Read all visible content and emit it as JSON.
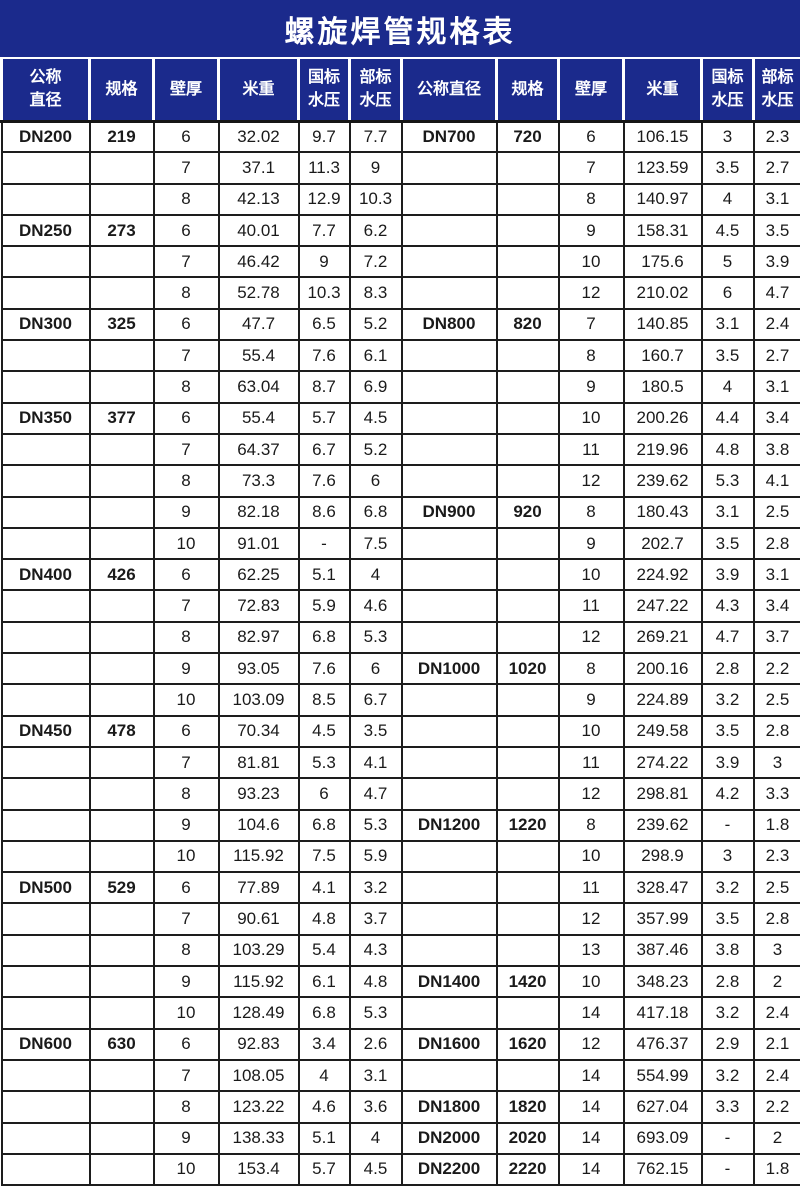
{
  "title": "螺旋焊管规格表",
  "colors": {
    "header_bg": "#1b2a8c",
    "header_text": "#ffffff",
    "grid_line": "#1d1d1d",
    "body_text": "#1a1a1a",
    "body_bg": "#ffffff"
  },
  "table": {
    "headers": [
      "公称\n直径",
      "规格",
      "壁厚",
      "米重",
      "国标\n水压",
      "部标\n水压",
      "公称直径",
      "规格",
      "壁厚",
      "米重",
      "国标\n水压",
      "部标\n水压"
    ],
    "rows": [
      [
        "DN200",
        "219",
        "6",
        "32.02",
        "9.7",
        "7.7",
        "DN700",
        "720",
        "6",
        "106.15",
        "3",
        "2.3"
      ],
      [
        "",
        "",
        "7",
        "37.1",
        "11.3",
        "9",
        "",
        "",
        "7",
        "123.59",
        "3.5",
        "2.7"
      ],
      [
        "",
        "",
        "8",
        "42.13",
        "12.9",
        "10.3",
        "",
        "",
        "8",
        "140.97",
        "4",
        "3.1"
      ],
      [
        "DN250",
        "273",
        "6",
        "40.01",
        "7.7",
        "6.2",
        "",
        "",
        "9",
        "158.31",
        "4.5",
        "3.5"
      ],
      [
        "",
        "",
        "7",
        "46.42",
        "9",
        "7.2",
        "",
        "",
        "10",
        "175.6",
        "5",
        "3.9"
      ],
      [
        "",
        "",
        "8",
        "52.78",
        "10.3",
        "8.3",
        "",
        "",
        "12",
        "210.02",
        "6",
        "4.7"
      ],
      [
        "DN300",
        "325",
        "6",
        "47.7",
        "6.5",
        "5.2",
        "DN800",
        "820",
        "7",
        "140.85",
        "3.1",
        "2.4"
      ],
      [
        "",
        "",
        "7",
        "55.4",
        "7.6",
        "6.1",
        "",
        "",
        "8",
        "160.7",
        "3.5",
        "2.7"
      ],
      [
        "",
        "",
        "8",
        "63.04",
        "8.7",
        "6.9",
        "",
        "",
        "9",
        "180.5",
        "4",
        "3.1"
      ],
      [
        "DN350",
        "377",
        "6",
        "55.4",
        "5.7",
        "4.5",
        "",
        "",
        "10",
        "200.26",
        "4.4",
        "3.4"
      ],
      [
        "",
        "",
        "7",
        "64.37",
        "6.7",
        "5.2",
        "",
        "",
        "11",
        "219.96",
        "4.8",
        "3.8"
      ],
      [
        "",
        "",
        "8",
        "73.3",
        "7.6",
        "6",
        "",
        "",
        "12",
        "239.62",
        "5.3",
        "4.1"
      ],
      [
        "",
        "",
        "9",
        "82.18",
        "8.6",
        "6.8",
        "DN900",
        "920",
        "8",
        "180.43",
        "3.1",
        "2.5"
      ],
      [
        "",
        "",
        "10",
        "91.01",
        "-",
        "7.5",
        "",
        "",
        "9",
        "202.7",
        "3.5",
        "2.8"
      ],
      [
        "DN400",
        "426",
        "6",
        "62.25",
        "5.1",
        "4",
        "",
        "",
        "10",
        "224.92",
        "3.9",
        "3.1"
      ],
      [
        "",
        "",
        "7",
        "72.83",
        "5.9",
        "4.6",
        "",
        "",
        "11",
        "247.22",
        "4.3",
        "3.4"
      ],
      [
        "",
        "",
        "8",
        "82.97",
        "6.8",
        "5.3",
        "",
        "",
        "12",
        "269.21",
        "4.7",
        "3.7"
      ],
      [
        "",
        "",
        "9",
        "93.05",
        "7.6",
        "6",
        "DN1000",
        "1020",
        "8",
        "200.16",
        "2.8",
        "2.2"
      ],
      [
        "",
        "",
        "10",
        "103.09",
        "8.5",
        "6.7",
        "",
        "",
        "9",
        "224.89",
        "3.2",
        "2.5"
      ],
      [
        "DN450",
        "478",
        "6",
        "70.34",
        "4.5",
        "3.5",
        "",
        "",
        "10",
        "249.58",
        "3.5",
        "2.8"
      ],
      [
        "",
        "",
        "7",
        "81.81",
        "5.3",
        "4.1",
        "",
        "",
        "11",
        "274.22",
        "3.9",
        "3"
      ],
      [
        "",
        "",
        "8",
        "93.23",
        "6",
        "4.7",
        "",
        "",
        "12",
        "298.81",
        "4.2",
        "3.3"
      ],
      [
        "",
        "",
        "9",
        "104.6",
        "6.8",
        "5.3",
        "DN1200",
        "1220",
        "8",
        "239.62",
        "-",
        "1.8"
      ],
      [
        "",
        "",
        "10",
        "115.92",
        "7.5",
        "5.9",
        "",
        "",
        "10",
        "298.9",
        "3",
        "2.3"
      ],
      [
        "DN500",
        "529",
        "6",
        "77.89",
        "4.1",
        "3.2",
        "",
        "",
        "11",
        "328.47",
        "3.2",
        "2.5"
      ],
      [
        "",
        "",
        "7",
        "90.61",
        "4.8",
        "3.7",
        "",
        "",
        "12",
        "357.99",
        "3.5",
        "2.8"
      ],
      [
        "",
        "",
        "8",
        "103.29",
        "5.4",
        "4.3",
        "",
        "",
        "13",
        "387.46",
        "3.8",
        "3"
      ],
      [
        "",
        "",
        "9",
        "115.92",
        "6.1",
        "4.8",
        "DN1400",
        "1420",
        "10",
        "348.23",
        "2.8",
        "2"
      ],
      [
        "",
        "",
        "10",
        "128.49",
        "6.8",
        "5.3",
        "",
        "",
        "14",
        "417.18",
        "3.2",
        "2.4"
      ],
      [
        "DN600",
        "630",
        "6",
        "92.83",
        "3.4",
        "2.6",
        "DN1600",
        "1620",
        "12",
        "476.37",
        "2.9",
        "2.1"
      ],
      [
        "",
        "",
        "7",
        "108.05",
        "4",
        "3.1",
        "",
        "",
        "14",
        "554.99",
        "3.2",
        "2.4"
      ],
      [
        "",
        "",
        "8",
        "123.22",
        "4.6",
        "3.6",
        "DN1800",
        "1820",
        "14",
        "627.04",
        "3.3",
        "2.2"
      ],
      [
        "",
        "",
        "9",
        "138.33",
        "5.1",
        "4",
        "DN2000",
        "2020",
        "14",
        "693.09",
        "-",
        "2"
      ],
      [
        "",
        "",
        "10",
        "153.4",
        "5.7",
        "4.5",
        "DN2200",
        "2220",
        "14",
        "762.15",
        "-",
        "1.8"
      ]
    ]
  }
}
